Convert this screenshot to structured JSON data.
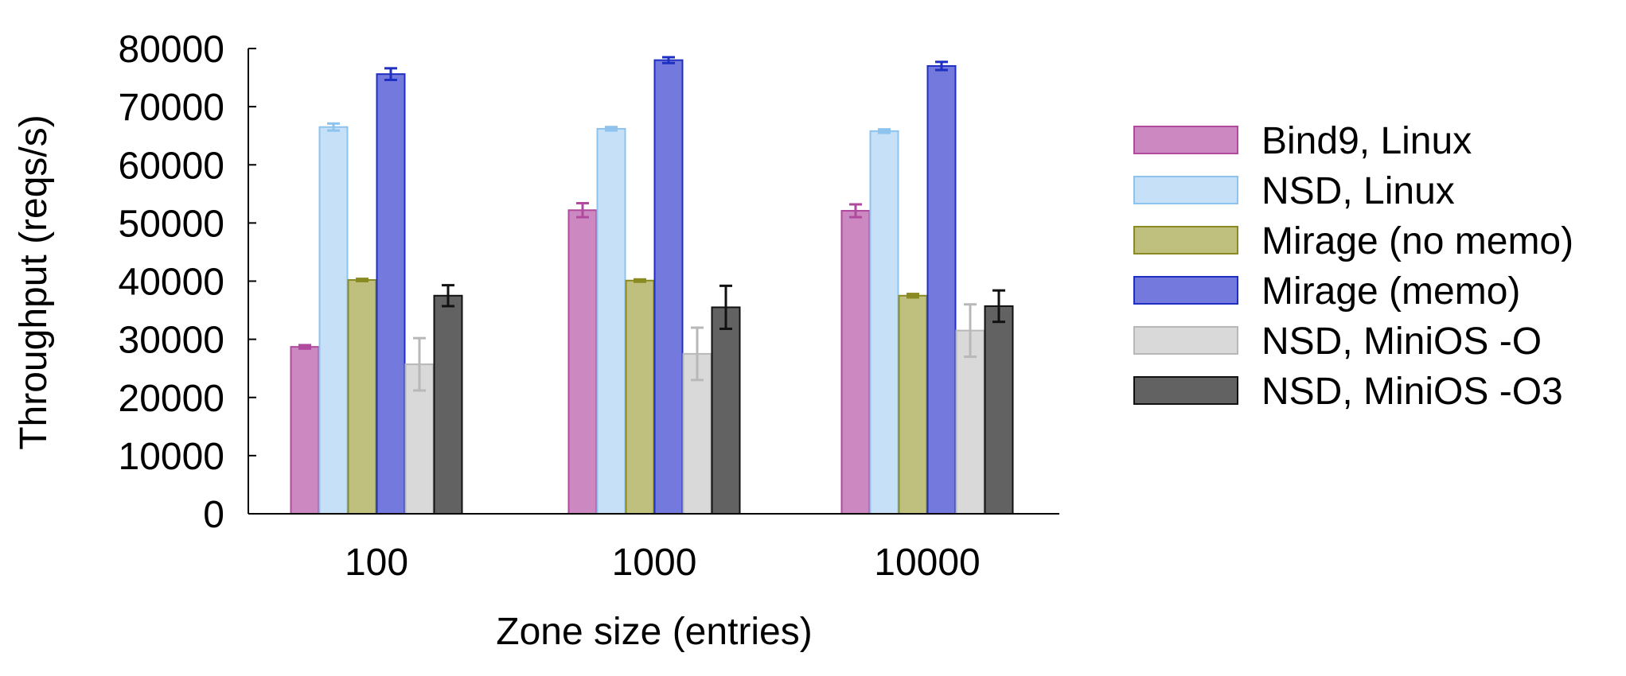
{
  "chart_data": {
    "type": "bar",
    "title": "",
    "xlabel": "Zone size (entries)",
    "ylabel": "Throughput (reqs/s)",
    "ylim": [
      0,
      80000
    ],
    "yticks": [
      0,
      10000,
      20000,
      30000,
      40000,
      50000,
      60000,
      70000,
      80000
    ],
    "categories": [
      "100",
      "1000",
      "10000"
    ],
    "grid": false,
    "legend_position": "right",
    "series": [
      {
        "name": "Bind9, Linux",
        "fill": "#cc88c0",
        "stroke": "#b04a9e",
        "values": [
          28700,
          52200,
          52100
        ],
        "errors": [
          300,
          1200,
          1100
        ]
      },
      {
        "name": "NSD, Linux",
        "fill": "#c6e0f7",
        "stroke": "#8ec3ee",
        "values": [
          66500,
          66200,
          65800
        ],
        "errors": [
          600,
          300,
          300
        ]
      },
      {
        "name": "Mirage (no memo)",
        "fill": "#c0c07e",
        "stroke": "#8a8a22",
        "values": [
          40200,
          40100,
          37500
        ],
        "errors": [
          200,
          200,
          300
        ]
      },
      {
        "name": "Mirage (memo)",
        "fill": "#7479de",
        "stroke": "#1f2fc2",
        "values": [
          75600,
          78000,
          77000
        ],
        "errors": [
          1000,
          500,
          700
        ]
      },
      {
        "name": "NSD, MiniOS -O",
        "fill": "#d9d9d9",
        "stroke": "#b8b8b8",
        "values": [
          25700,
          27500,
          31500
        ],
        "errors": [
          4500,
          4500,
          4500
        ]
      },
      {
        "name": "NSD, MiniOS -O3",
        "fill": "#626262",
        "stroke": "#111111",
        "values": [
          37500,
          35500,
          35700
        ],
        "errors": [
          1800,
          3700,
          2700
        ]
      }
    ]
  }
}
